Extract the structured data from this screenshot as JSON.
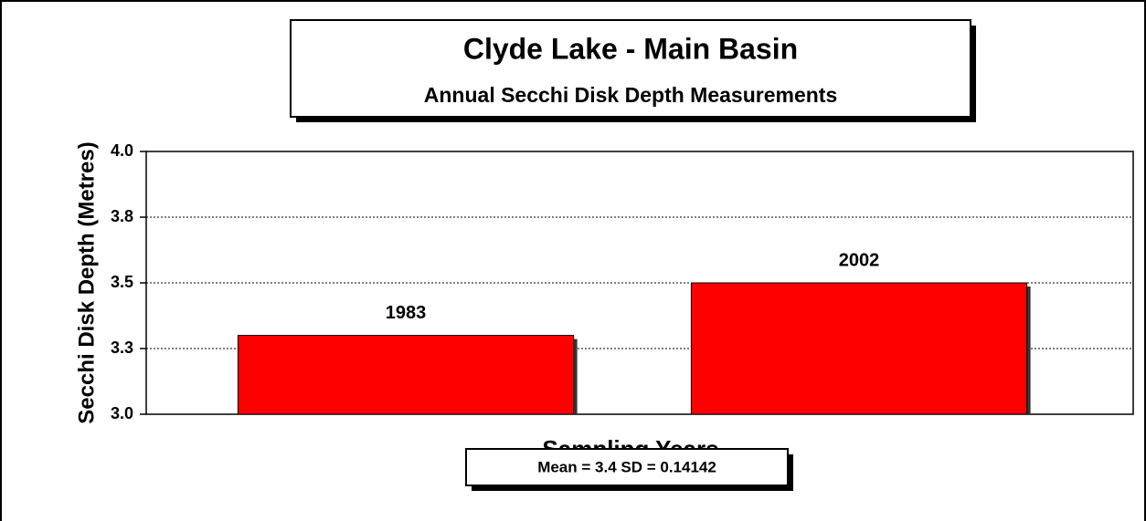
{
  "chart_data": {
    "type": "bar",
    "title": "Clyde Lake - Main Basin",
    "subtitle": "Annual Secchi Disk Depth Measurements",
    "x_label": "Sampling Years",
    "y_label": "Secchi Disk Depth (Metres)",
    "annotation": "Mean = 3.4  SD = 0.14142",
    "categories": [
      "1983",
      "2002"
    ],
    "values": [
      3.3,
      3.5
    ],
    "color": "#ff0000",
    "ylim": [
      3,
      4
    ],
    "yticks": [
      {
        "value": 3,
        "label": "3.0"
      },
      {
        "value": 3.25,
        "label": "3.3"
      },
      3.5,
      {
        "value": 3.75,
        "label": "3.8"
      },
      {
        "value": 4,
        "label": "4.0"
      }
    ],
    "grid": true
  }
}
